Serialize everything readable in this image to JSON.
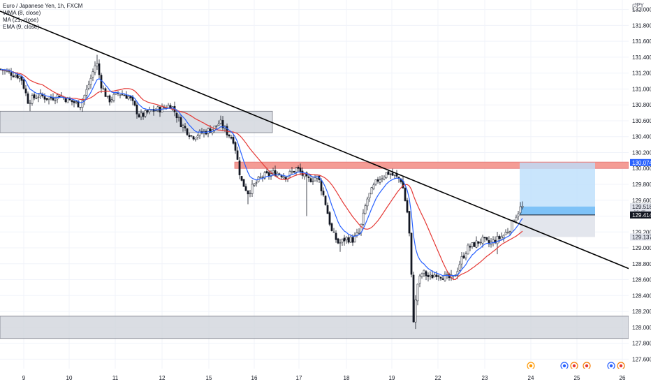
{
  "header": {
    "symbol": "Euro / Japanese Yen, 1h, FXCM",
    "indicators": [
      "WMA (8, close)",
      "MA (21, close)",
      "EMA (9, close)"
    ],
    "currency": "JPY"
  },
  "colors": {
    "up": "#ffffff",
    "down": "#131722",
    "wick": "#131722",
    "ma21": "#e53935",
    "ema9": "#2962ff",
    "wma8": "#42a5f5",
    "trendline": "#000000",
    "zone": "#d1d4dc",
    "zone_red": "#f28b82",
    "target": "#bbdefb",
    "stop": "#e0e3eb",
    "entry_band": "#64b5f6"
  },
  "chart_data": {
    "type": "candlestick",
    "y_axis": {
      "ylim": [
        127.48,
        132.12
      ],
      "ticks": [
        "127.600",
        "127.800",
        "128.000",
        "128.200",
        "128.400",
        "128.600",
        "128.800",
        "129.000",
        "129.200",
        "129.400",
        "129.600",
        "129.800",
        "130.000",
        "130.200",
        "130.400",
        "130.600",
        "130.800",
        "131.000",
        "131.200",
        "131.400",
        "131.600",
        "131.800",
        "132.000"
      ]
    },
    "x_axis": {
      "ticks": [
        "9",
        "10",
        "11",
        "12",
        "15",
        "16",
        "17",
        "18",
        "19",
        "22",
        "23",
        "24",
        "25",
        "26"
      ]
    },
    "price_labels": [
      {
        "value": 130.074,
        "label": "130.074",
        "style": "blue"
      },
      {
        "value": 129.518,
        "label": "129.518",
        "sub": "16:45",
        "style": "gray"
      },
      {
        "value": 129.414,
        "label": "129.414",
        "style": "black"
      },
      {
        "value": 129.137,
        "label": "129.137",
        "style": "gray"
      }
    ],
    "anchors": [
      [
        0,
        131.25
      ],
      [
        15,
        131.2
      ],
      [
        30,
        131.15
      ],
      [
        40,
        130.85
      ],
      [
        55,
        130.92
      ],
      [
        70,
        130.88
      ],
      [
        85,
        130.92
      ],
      [
        100,
        130.85
      ],
      [
        115,
        130.8
      ],
      [
        125,
        131.0
      ],
      [
        138,
        131.35
      ],
      [
        145,
        131.05
      ],
      [
        155,
        130.85
      ],
      [
        170,
        130.95
      ],
      [
        185,
        130.9
      ],
      [
        200,
        130.65
      ],
      [
        215,
        130.72
      ],
      [
        230,
        130.75
      ],
      [
        245,
        130.8
      ],
      [
        260,
        130.55
      ],
      [
        275,
        130.4
      ],
      [
        290,
        130.45
      ],
      [
        305,
        130.5
      ],
      [
        315,
        130.58
      ],
      [
        325,
        130.45
      ],
      [
        335,
        130.35
      ],
      [
        345,
        129.85
      ],
      [
        355,
        129.7
      ],
      [
        365,
        129.8
      ],
      [
        375,
        129.9
      ],
      [
        385,
        129.92
      ],
      [
        395,
        129.95
      ],
      [
        410,
        129.9
      ],
      [
        425,
        130.0
      ],
      [
        440,
        129.85
      ],
      [
        455,
        129.9
      ],
      [
        465,
        129.6
      ],
      [
        475,
        129.2
      ],
      [
        485,
        129.05
      ],
      [
        495,
        129.12
      ],
      [
        505,
        129.1
      ],
      [
        515,
        129.2
      ],
      [
        525,
        129.6
      ],
      [
        540,
        129.85
      ],
      [
        555,
        129.95
      ],
      [
        565,
        129.9
      ],
      [
        575,
        129.85
      ],
      [
        585,
        129.35
      ],
      [
        592,
        128.1
      ],
      [
        598,
        128.55
      ],
      [
        605,
        128.7
      ],
      [
        615,
        128.62
      ],
      [
        625,
        128.68
      ],
      [
        640,
        128.62
      ],
      [
        650,
        128.62
      ],
      [
        660,
        128.85
      ],
      [
        670,
        129.0
      ],
      [
        680,
        129.05
      ],
      [
        690,
        129.1
      ],
      [
        700,
        129.05
      ],
      [
        710,
        129.1
      ],
      [
        720,
        129.15
      ],
      [
        730,
        129.25
      ],
      [
        738,
        129.4
      ],
      [
        745,
        129.5
      ],
      [
        750,
        129.52
      ]
    ],
    "spikes": [
      {
        "x": 595,
        "low": 127.98
      },
      {
        "x": 438,
        "low": 129.4
      },
      {
        "x": 488,
        "low": 128.95
      },
      {
        "x": 356,
        "low": 129.55
      },
      {
        "x": 42,
        "low": 130.72
      },
      {
        "x": 140,
        "high": 131.43
      },
      {
        "x": 713,
        "low": 128.92
      }
    ],
    "zones": [
      {
        "x0": 0,
        "x1": 390,
        "y0": 130.45,
        "y1": 130.72,
        "kind": "zone"
      },
      {
        "x0": 336,
        "x1": 900,
        "y0": 130.0,
        "y1": 130.08,
        "kind": "zone_red"
      },
      {
        "x0": 0,
        "x1": 900,
        "y0": 127.86,
        "y1": 128.14,
        "kind": "zone"
      }
    ],
    "position": {
      "x0": 744,
      "x1": 852,
      "target": 130.074,
      "entry": 129.414,
      "stop": 129.137,
      "entry_band": 129.52
    },
    "trendline": {
      "x0": 0,
      "y0": 131.98,
      "x1": 900,
      "y1": 128.74
    },
    "event_markers": [
      {
        "x": 760,
        "kind": "orange"
      },
      {
        "x": 808,
        "kind": "blue"
      },
      {
        "x": 822,
        "kind": "red"
      },
      {
        "x": 840,
        "kind": "red"
      },
      {
        "x": 875,
        "kind": "blue"
      },
      {
        "x": 889,
        "kind": "red"
      }
    ]
  }
}
